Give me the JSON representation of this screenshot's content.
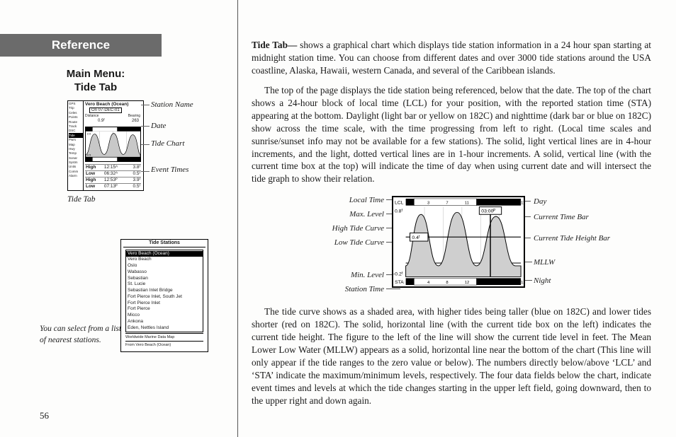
{
  "ref_title": "Reference",
  "subhead_line1": "Main Menu:",
  "subhead_line2": "Tide Tab",
  "page_number": "56",
  "fig1": {
    "title": "Vero Beach (Ocean)",
    "date": "07-DEC-01",
    "dist_lbl": "Distance",
    "dist_val": "0.9ᶠ",
    "brg_lbl": "Bearing",
    "brg_val": "263",
    "tabs": [
      "GPS",
      "Trip",
      "Celes",
      "Points",
      "Route",
      "Track",
      "DSC",
      "Tide",
      "Pwrs",
      "Map",
      "Hwy",
      "Temp",
      "Sonar",
      "Systm",
      "Units",
      "Comm",
      "Alarm"
    ],
    "events": [
      {
        "t": "High",
        "v": "12:15ᴬ",
        "h": "3.8ᶠ"
      },
      {
        "t": "Low",
        "v": "06:32ᴬ",
        "h": "0.5ᶠ"
      },
      {
        "t": "High",
        "v": "12:53ᴾ",
        "h": "3.9ᶠ"
      },
      {
        "t": "Low",
        "v": "07:13ᴾ",
        "h": "0.5ᶠ"
      }
    ],
    "side_labels": [
      "Station Name",
      "Date",
      "Tide Chart",
      "Event Times"
    ],
    "caption": "Tide Tab"
  },
  "fig2": {
    "title": "Tide Stations",
    "items": [
      "Vero Beach (Ocean)",
      "Vero Beach",
      "Oslo",
      "Wabasso",
      "Sebastian",
      "St. Lucie",
      "Sebastian Inlet Bridge",
      "Fort Pierce Inlet, South Jet",
      "Fort Pierce Inlet",
      "Fort Pierce",
      "Micco",
      "Ankona",
      "Eden, Nettles Island"
    ],
    "foot1": "Worldwide Marine Data Map",
    "foot2": "From Vero Beach (Ocean)",
    "caption": "You can select from a list of nearest stations."
  },
  "diagram": {
    "left": [
      "Local Time",
      "Max. Level",
      "High Tide Curve",
      "Low Tide Curve",
      "Min. Level",
      "Station Time"
    ],
    "right": [
      "Day",
      "Current Time Bar",
      "Current Tide Height Bar",
      "MLLW",
      "Night"
    ],
    "lcl": "LCL",
    "sta": "STA",
    "max": "0.8ᶠ",
    "min": "-0.2ᶠ",
    "cur": "0.4ᶠ",
    "time_box": "03:00ᴾ",
    "top_ticks": [
      "11",
      "3",
      "7",
      "11",
      "3",
      "7",
      "11"
    ],
    "bot_ticks": [
      "12",
      "4",
      "8",
      "12",
      "4",
      "8",
      "12"
    ]
  },
  "body": {
    "p1a": "Tide Tab—",
    "p1b": " shows a graphical chart which displays tide station information in a 24 hour span starting at midnight station time. You can choose from different dates and over 3000 tide stations around the USA coastline, Alaska, Hawaii, western Canada, and several of the Caribbean islands.",
    "p2": "The top of the page displays the tide station being referenced, below that the date. The top of the chart shows a 24-hour block of local time (LCL) for your position, with the reported station time (STA) appearing at the bottom. Daylight (light bar or yellow on 182C) and nighttime (dark bar or blue on 182C) show across the time scale, with the time progressing from left to right. (Local time scales and sunrise/sunset info may not be available for a few stations). The solid, light vertical lines are in 4-hour increments, and the light, dotted vertical lines are in 1-hour increments. A solid, vertical line (with the current time box at the top) will indicate the time of day when using current date and will intersect the tide graph to show their relation.",
    "p3": "The tide curve shows as a shaded area, with higher tides being taller (blue on 182C) and lower tides shorter (red on 182C). The solid, horizontal line (with the current tide box on the left) indicates the current tide height. The figure to the left of the line will show the current tide level in feet. The Mean Lower Low Water (MLLW) appears as a solid, horizontal line near the bottom of the chart (This line will only appear if the tide ranges to the zero value or below). The numbers directly below/above ‘LCL’ and ‘STA’ indicate the maximum/minimum levels, respectively. The four data fields below the chart, indicate event times and levels at which the tide changes starting in the upper left field, going downward, then to the upper right and down again."
  }
}
